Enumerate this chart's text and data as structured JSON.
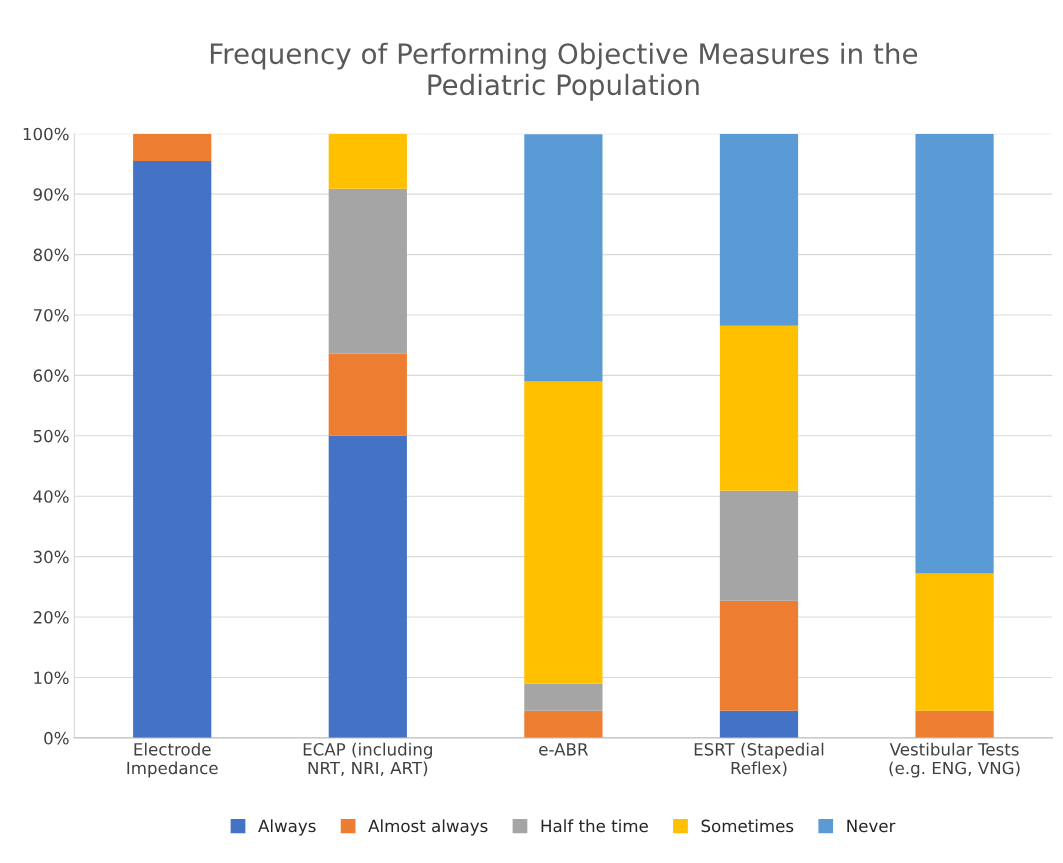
{
  "chart_data": {
    "type": "bar",
    "stacked": true,
    "title": "Frequency of Performing Objective Measures in the\nPediatric Population",
    "categories": [
      "Electrode\nImpedance",
      "ECAP (including\nNRT, NRI, ART)",
      "e-ABR",
      "ESRT (Stapedial\nReflex)",
      "Vestibular Tests\n(e.g. ENG, VNG)"
    ],
    "series": [
      {
        "name": "Always",
        "color": "#4472c4",
        "values": [
          95.5,
          50,
          0,
          4.5,
          0
        ]
      },
      {
        "name": "Almost always",
        "color": "#ed7d31",
        "values": [
          4.5,
          13.6,
          4.5,
          18.2,
          4.5
        ]
      },
      {
        "name": "Half the time",
        "color": "#a5a5a5",
        "values": [
          0,
          27.3,
          4.5,
          18.2,
          0
        ]
      },
      {
        "name": "Sometimes",
        "color": "#ffc000",
        "values": [
          0,
          9.1,
          50,
          27.3,
          22.7
        ]
      },
      {
        "name": "Never",
        "color": "#5b9bd5",
        "values": [
          0,
          0,
          40.9,
          31.8,
          72.8
        ]
      }
    ],
    "ylim": [
      0,
      100
    ],
    "yticks": [
      {
        "value": 0,
        "label": "0%"
      },
      {
        "value": 10,
        "label": "10%"
      },
      {
        "value": 20,
        "label": "20%"
      },
      {
        "value": 30,
        "label": "30%"
      },
      {
        "value": 40,
        "label": "40%"
      },
      {
        "value": 50,
        "label": "50%"
      },
      {
        "value": 60,
        "label": "60%"
      },
      {
        "value": 70,
        "label": "70%"
      },
      {
        "value": 80,
        "label": "80%"
      },
      {
        "value": 90,
        "label": "90%"
      },
      {
        "value": 100,
        "label": "100%"
      }
    ],
    "grid": "y",
    "legend": "bottom"
  }
}
